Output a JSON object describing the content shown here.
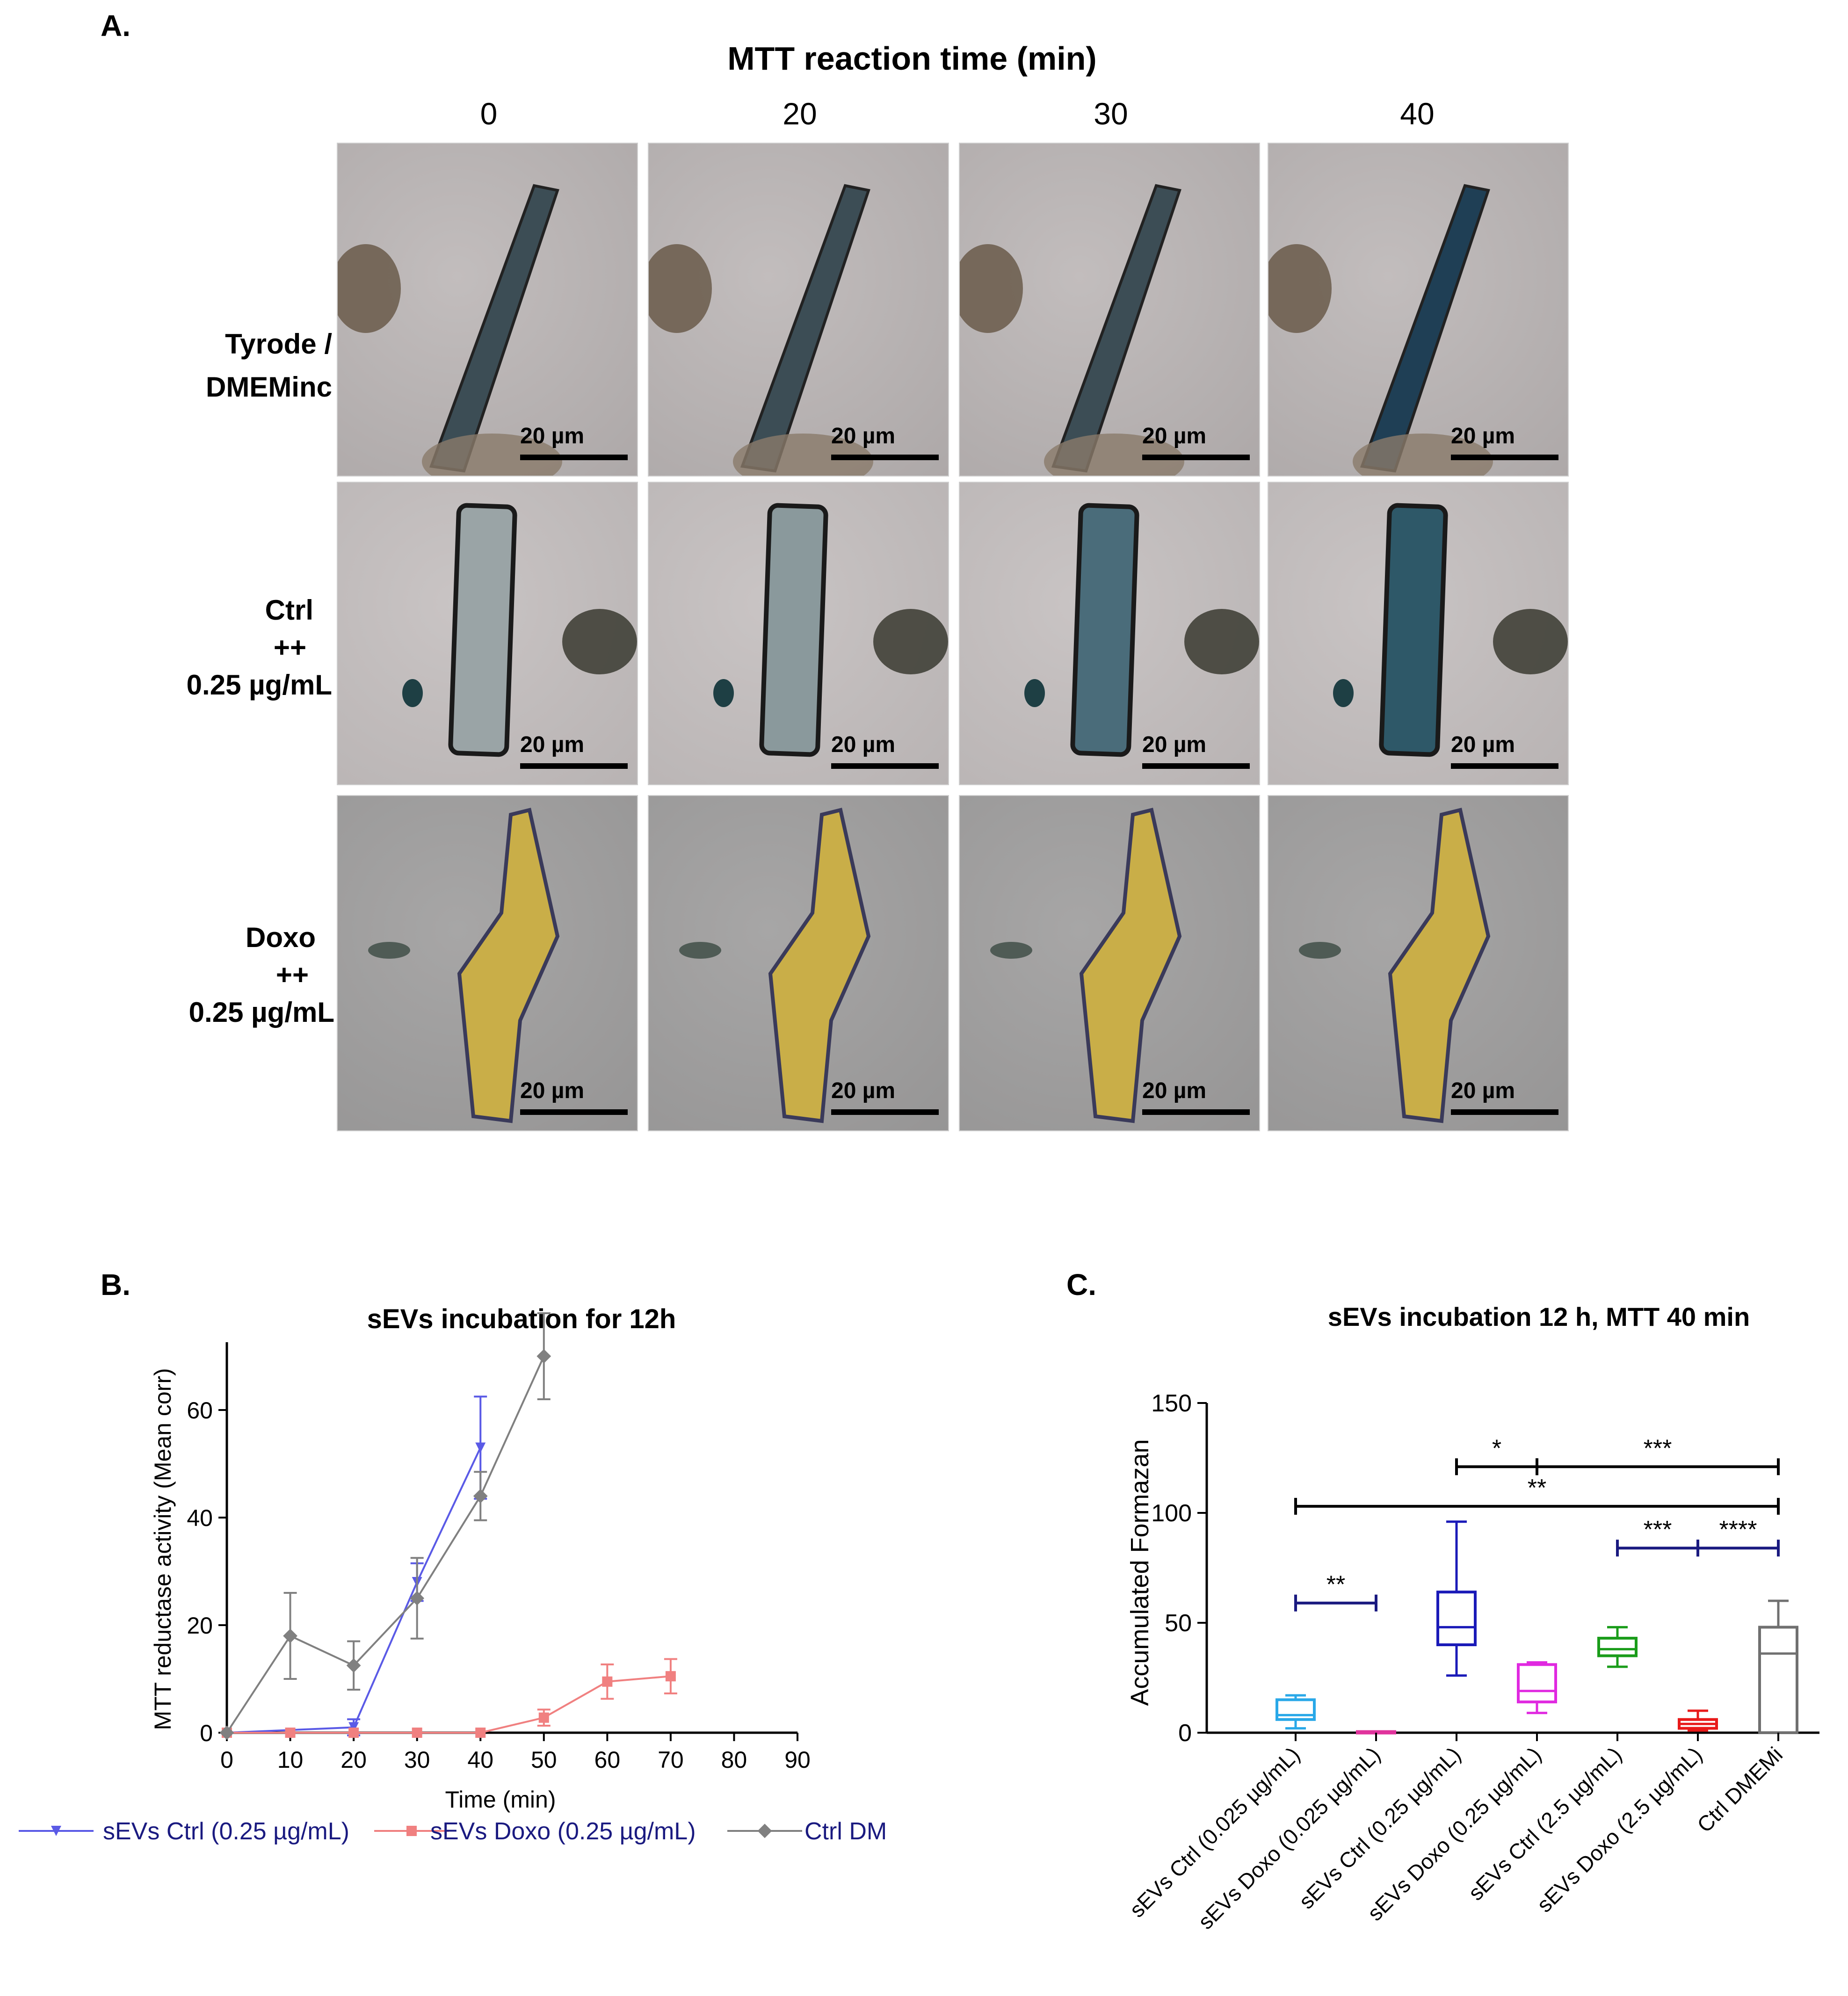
{
  "panelA": {
    "letter": "A.",
    "title": "MTT reaction time (min)",
    "columns": [
      "0",
      "20",
      "30",
      "40"
    ],
    "rows": [
      {
        "lines": [
          "Tyrode /",
          "DMEMinc"
        ],
        "tone": "light"
      },
      {
        "lines": [
          "Ctrl",
          "++",
          "0.25 µg/mL"
        ],
        "tone": "ctrl"
      },
      {
        "lines": [
          "Doxo",
          "++",
          "0.25 µg/mL"
        ],
        "tone": "doxo"
      }
    ],
    "scale_label": "20 µm"
  },
  "panelB": {
    "letter": "B.",
    "chart_data": {
      "type": "line",
      "title": "sEVs incubation for 12h",
      "xlabel": "Time (min)",
      "ylabel": "MTT reductase activity (Mean corr)",
      "xlim": [
        0,
        90
      ],
      "ylim": [
        0,
        70
      ],
      "xticks": [
        0,
        10,
        20,
        30,
        40,
        50,
        60,
        70,
        80,
        90
      ],
      "yticks": [
        0,
        20,
        40,
        60
      ],
      "legend_position": "bottom",
      "series": [
        {
          "name": "sEVs Ctrl (0.25 µg/mL)",
          "color": "#5a5ae6",
          "marker": "triangle-down",
          "x": [
            0,
            20,
            30,
            40
          ],
          "y": [
            0,
            1,
            28,
            53
          ],
          "err": [
            0,
            1.5,
            3.5,
            9.5
          ]
        },
        {
          "name": "sEVs Doxo (0.25 µg/mL)",
          "color": "#f08080",
          "marker": "square",
          "x": [
            0,
            10,
            20,
            30,
            40,
            50,
            60,
            70
          ],
          "y": [
            0,
            0,
            0,
            0,
            0,
            2.8,
            9.5,
            10.5
          ],
          "err": [
            0,
            0,
            0,
            0,
            0,
            1.5,
            3.2,
            3.2
          ]
        },
        {
          "name": "Ctrl DMEMi",
          "color": "#808080",
          "marker": "diamond",
          "x": [
            0,
            10,
            20,
            30,
            40,
            50
          ],
          "y": [
            0,
            18,
            12.5,
            25,
            44,
            70
          ],
          "err": [
            0,
            8,
            4.5,
            7.5,
            4.5,
            8
          ]
        }
      ]
    }
  },
  "panelC": {
    "letter": "C.",
    "chart_data": {
      "type": "box",
      "title": "sEVs incubation 12 h, MTT 40 min",
      "ylabel": "Accumulated Formazan",
      "ylim": [
        0,
        150
      ],
      "yticks": [
        0,
        50,
        100,
        150
      ],
      "categories": [
        "sEVs Ctrl (0.025 µg/mL)",
        "sEVs Doxo (0.025 µg/mL)",
        "sEVs Ctrl (0.25 µg/mL)",
        "sEVs Doxo (0.25 µg/mL)",
        "sEVs Ctrl (2.5 µg/mL)",
        "sEVs Doxo (2.5 µg/mL)",
        "Ctrl DMEMi"
      ],
      "boxes": [
        {
          "color": "#29a8e8",
          "min": 2,
          "q1": 6,
          "median": 8,
          "q3": 15,
          "max": 17
        },
        {
          "color": "#e0339c",
          "min": 0,
          "q1": 0,
          "median": 0,
          "q3": 0.5,
          "max": 0.5
        },
        {
          "color": "#1a1ab8",
          "min": 26,
          "q1": 40,
          "median": 48,
          "q3": 64,
          "max": 96
        },
        {
          "color": "#e029e0",
          "min": 9,
          "q1": 14,
          "median": 19,
          "q3": 31,
          "max": 32
        },
        {
          "color": "#1a9c1a",
          "min": 30,
          "q1": 35,
          "median": 38,
          "q3": 43,
          "max": 48
        },
        {
          "color": "#e81a1a",
          "min": 1,
          "q1": 2,
          "median": 4,
          "q3": 6,
          "max": 10
        },
        {
          "color": "#707070",
          "min": 0,
          "q1": 0,
          "median": 36,
          "q3": 48,
          "max": 60
        }
      ],
      "significance": [
        {
          "from": 0,
          "to": 1,
          "y": 59,
          "label": "**",
          "color": "#1a1a80"
        },
        {
          "from": 2,
          "to": 3,
          "y": 121,
          "label": "*",
          "color": "#000000"
        },
        {
          "from": 3,
          "to": 6,
          "y": 121,
          "label": "***",
          "color": "#000000"
        },
        {
          "from": 0,
          "to": 6,
          "y": 103,
          "label": "**",
          "color": "#000000"
        },
        {
          "from": 4,
          "to": 5,
          "y": 84,
          "label": "***",
          "color": "#1a1a80"
        },
        {
          "from": 5,
          "to": 6,
          "y": 84,
          "label": "****",
          "color": "#1a1a80"
        }
      ]
    }
  }
}
